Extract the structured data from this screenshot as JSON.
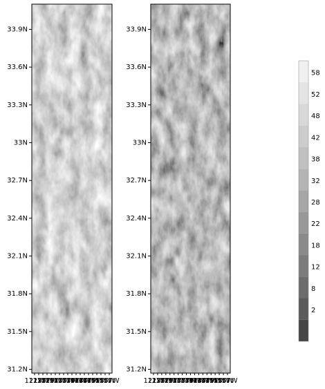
{
  "panels": [
    {
      "yticks": [
        {
          "value": 33.9,
          "label": "33.9N"
        },
        {
          "value": 33.6,
          "label": "33.6N"
        },
        {
          "value": 33.3,
          "label": "33.3N"
        },
        {
          "value": 33,
          "label": "33N"
        },
        {
          "value": 32.7,
          "label": "32.7N"
        },
        {
          "value": 32.4,
          "label": "32.4N"
        },
        {
          "value": 32.1,
          "label": "32.1N"
        },
        {
          "value": 31.8,
          "label": "31.8N"
        },
        {
          "value": 31.5,
          "label": "31.5N"
        },
        {
          "value": 31.2,
          "label": "31.2N"
        }
      ],
      "xticks": [
        "121W",
        "123W",
        "125W",
        "127W",
        "129W",
        "131W",
        "133W",
        "135W",
        "137W",
        "139W",
        "141W",
        "143W",
        "145W",
        "147W",
        "149W",
        "151W",
        "153W",
        "155W",
        "157W"
      ],
      "ylim": [
        31.17,
        34.1
      ]
    },
    {
      "yticks": [
        {
          "value": 33.9,
          "label": "33.9N"
        },
        {
          "value": 33.6,
          "label": "33.6N"
        },
        {
          "value": 33.3,
          "label": "33.3N"
        },
        {
          "value": 33,
          "label": "33N"
        },
        {
          "value": 32.7,
          "label": "32.7N"
        },
        {
          "value": 32.4,
          "label": "32.4N"
        },
        {
          "value": 32.1,
          "label": "32.1N"
        },
        {
          "value": 31.8,
          "label": "31.8N"
        },
        {
          "value": 31.5,
          "label": "31.5N"
        },
        {
          "value": 31.2,
          "label": "31.2N"
        }
      ],
      "xticks": [
        "121W",
        "123W",
        "125W",
        "127W",
        "129W",
        "131W",
        "133W",
        "135W",
        "137W",
        "139W",
        "141W",
        "143W",
        "145W",
        "147W",
        "149W",
        "151W",
        "153W",
        "155W",
        "157W"
      ],
      "ylim": [
        31.17,
        34.1
      ]
    }
  ],
  "colorbar": {
    "levels": [
      58,
      52,
      48,
      42,
      38,
      32,
      28,
      22,
      18,
      12,
      8,
      2
    ],
    "colors": [
      "#f0f0f0",
      "#e4e4e4",
      "#d8d8d8",
      "#cccccc",
      "#c0c0c0",
      "#b4b4b4",
      "#a6a6a6",
      "#989898",
      "#8a8a8a",
      "#7c7c7c",
      "#6c6c6c",
      "#5a5a5a",
      "#464646"
    ]
  }
}
